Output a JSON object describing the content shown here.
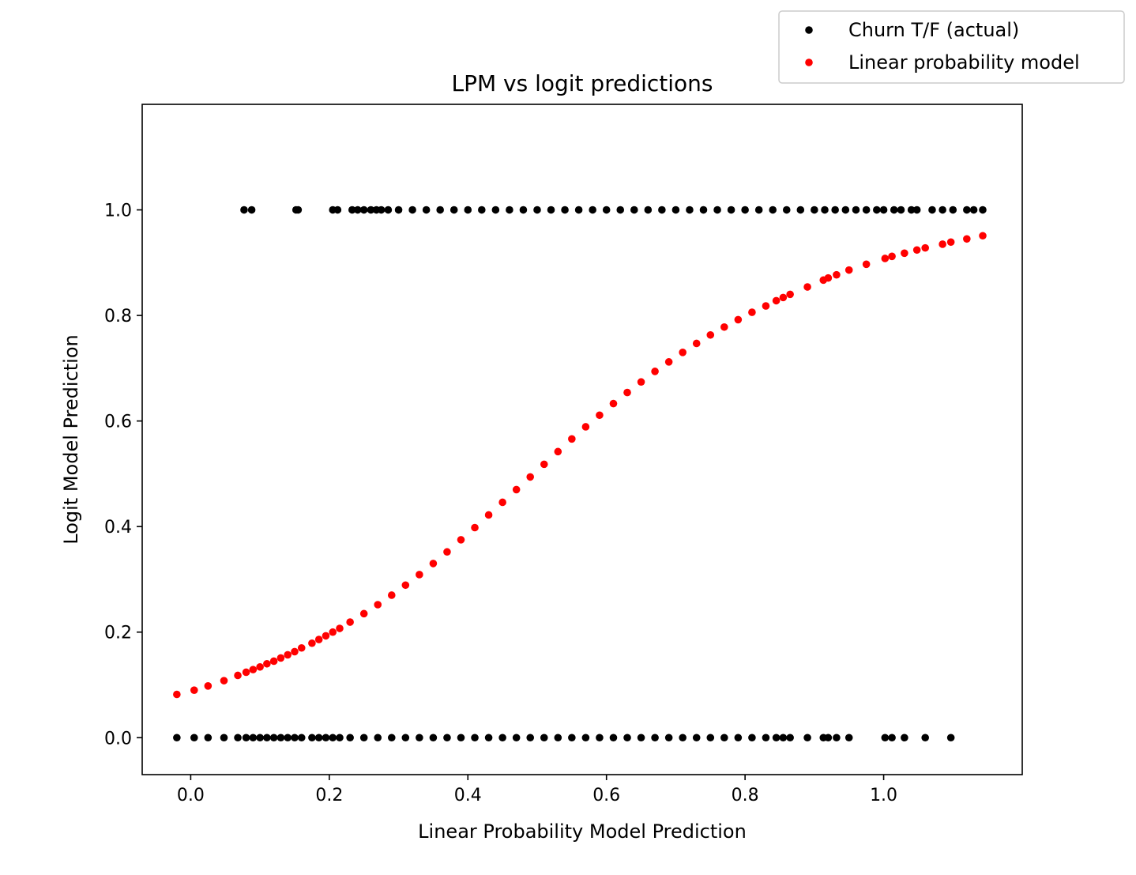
{
  "chart_data": {
    "type": "scatter",
    "title": "LPM vs logit predictions",
    "xlabel": "Linear Probability Model Prediction",
    "ylabel": "Logit Model Prediction",
    "xlim": [
      -0.07,
      1.2
    ],
    "ylim": [
      -0.07,
      1.2
    ],
    "xticks": [
      0.0,
      0.2,
      0.4,
      0.6,
      0.8,
      1.0
    ],
    "xtick_labels": [
      "0.0",
      "0.2",
      "0.4",
      "0.6",
      "0.8",
      "1.0"
    ],
    "yticks": [
      0.0,
      0.2,
      0.4,
      0.6,
      0.8,
      1.0
    ],
    "ytick_labels": [
      "0.0",
      "0.2",
      "0.4",
      "0.6",
      "0.8",
      "1.0"
    ],
    "grid": false,
    "legend_position": "top-right (outside plot)",
    "series": [
      {
        "name": "Churn T/F (actual)",
        "color": "#000000",
        "marker": "dot",
        "points": [
          {
            "x": 0.077,
            "y": 1.0
          },
          {
            "x": 0.088,
            "y": 1.0
          },
          {
            "x": 0.152,
            "y": 1.0
          },
          {
            "x": 0.155,
            "y": 1.0
          },
          {
            "x": 0.205,
            "y": 1.0
          },
          {
            "x": 0.212,
            "y": 1.0
          },
          {
            "x": 0.233,
            "y": 1.0
          },
          {
            "x": 0.241,
            "y": 1.0
          },
          {
            "x": 0.25,
            "y": 1.0
          },
          {
            "x": 0.26,
            "y": 1.0
          },
          {
            "x": 0.268,
            "y": 1.0
          },
          {
            "x": 0.275,
            "y": 1.0
          },
          {
            "x": 0.285,
            "y": 1.0
          },
          {
            "x": 0.3,
            "y": 1.0
          },
          {
            "x": 0.32,
            "y": 1.0
          },
          {
            "x": 0.34,
            "y": 1.0
          },
          {
            "x": 0.36,
            "y": 1.0
          },
          {
            "x": 0.38,
            "y": 1.0
          },
          {
            "x": 0.4,
            "y": 1.0
          },
          {
            "x": 0.42,
            "y": 1.0
          },
          {
            "x": 0.44,
            "y": 1.0
          },
          {
            "x": 0.46,
            "y": 1.0
          },
          {
            "x": 0.48,
            "y": 1.0
          },
          {
            "x": 0.5,
            "y": 1.0
          },
          {
            "x": 0.52,
            "y": 1.0
          },
          {
            "x": 0.54,
            "y": 1.0
          },
          {
            "x": 0.56,
            "y": 1.0
          },
          {
            "x": 0.58,
            "y": 1.0
          },
          {
            "x": 0.6,
            "y": 1.0
          },
          {
            "x": 0.62,
            "y": 1.0
          },
          {
            "x": 0.64,
            "y": 1.0
          },
          {
            "x": 0.66,
            "y": 1.0
          },
          {
            "x": 0.68,
            "y": 1.0
          },
          {
            "x": 0.7,
            "y": 1.0
          },
          {
            "x": 0.72,
            "y": 1.0
          },
          {
            "x": 0.74,
            "y": 1.0
          },
          {
            "x": 0.76,
            "y": 1.0
          },
          {
            "x": 0.78,
            "y": 1.0
          },
          {
            "x": 0.8,
            "y": 1.0
          },
          {
            "x": 0.82,
            "y": 1.0
          },
          {
            "x": 0.84,
            "y": 1.0
          },
          {
            "x": 0.86,
            "y": 1.0
          },
          {
            "x": 0.88,
            "y": 1.0
          },
          {
            "x": 0.9,
            "y": 1.0
          },
          {
            "x": 0.915,
            "y": 1.0
          },
          {
            "x": 0.93,
            "y": 1.0
          },
          {
            "x": 0.945,
            "y": 1.0
          },
          {
            "x": 0.96,
            "y": 1.0
          },
          {
            "x": 0.975,
            "y": 1.0
          },
          {
            "x": 0.99,
            "y": 1.0
          },
          {
            "x": 1.0,
            "y": 1.0
          },
          {
            "x": 1.015,
            "y": 1.0
          },
          {
            "x": 1.025,
            "y": 1.0
          },
          {
            "x": 1.04,
            "y": 1.0
          },
          {
            "x": 1.048,
            "y": 1.0
          },
          {
            "x": 1.07,
            "y": 1.0
          },
          {
            "x": 1.085,
            "y": 1.0
          },
          {
            "x": 1.1,
            "y": 1.0
          },
          {
            "x": 1.12,
            "y": 1.0
          },
          {
            "x": 1.13,
            "y": 1.0
          },
          {
            "x": 1.143,
            "y": 1.0
          },
          {
            "x": -0.02,
            "y": 0.0
          },
          {
            "x": 0.005,
            "y": 0.0
          },
          {
            "x": 0.025,
            "y": 0.0
          },
          {
            "x": 0.048,
            "y": 0.0
          },
          {
            "x": 0.068,
            "y": 0.0
          },
          {
            "x": 0.08,
            "y": 0.0
          },
          {
            "x": 0.09,
            "y": 0.0
          },
          {
            "x": 0.1,
            "y": 0.0
          },
          {
            "x": 0.11,
            "y": 0.0
          },
          {
            "x": 0.12,
            "y": 0.0
          },
          {
            "x": 0.13,
            "y": 0.0
          },
          {
            "x": 0.14,
            "y": 0.0
          },
          {
            "x": 0.15,
            "y": 0.0
          },
          {
            "x": 0.16,
            "y": 0.0
          },
          {
            "x": 0.175,
            "y": 0.0
          },
          {
            "x": 0.185,
            "y": 0.0
          },
          {
            "x": 0.195,
            "y": 0.0
          },
          {
            "x": 0.205,
            "y": 0.0
          },
          {
            "x": 0.215,
            "y": 0.0
          },
          {
            "x": 0.23,
            "y": 0.0
          },
          {
            "x": 0.25,
            "y": 0.0
          },
          {
            "x": 0.27,
            "y": 0.0
          },
          {
            "x": 0.29,
            "y": 0.0
          },
          {
            "x": 0.31,
            "y": 0.0
          },
          {
            "x": 0.33,
            "y": 0.0
          },
          {
            "x": 0.35,
            "y": 0.0
          },
          {
            "x": 0.37,
            "y": 0.0
          },
          {
            "x": 0.39,
            "y": 0.0
          },
          {
            "x": 0.41,
            "y": 0.0
          },
          {
            "x": 0.43,
            "y": 0.0
          },
          {
            "x": 0.45,
            "y": 0.0
          },
          {
            "x": 0.47,
            "y": 0.0
          },
          {
            "x": 0.49,
            "y": 0.0
          },
          {
            "x": 0.51,
            "y": 0.0
          },
          {
            "x": 0.53,
            "y": 0.0
          },
          {
            "x": 0.55,
            "y": 0.0
          },
          {
            "x": 0.57,
            "y": 0.0
          },
          {
            "x": 0.59,
            "y": 0.0
          },
          {
            "x": 0.61,
            "y": 0.0
          },
          {
            "x": 0.63,
            "y": 0.0
          },
          {
            "x": 0.65,
            "y": 0.0
          },
          {
            "x": 0.67,
            "y": 0.0
          },
          {
            "x": 0.69,
            "y": 0.0
          },
          {
            "x": 0.71,
            "y": 0.0
          },
          {
            "x": 0.73,
            "y": 0.0
          },
          {
            "x": 0.75,
            "y": 0.0
          },
          {
            "x": 0.77,
            "y": 0.0
          },
          {
            "x": 0.79,
            "y": 0.0
          },
          {
            "x": 0.81,
            "y": 0.0
          },
          {
            "x": 0.83,
            "y": 0.0
          },
          {
            "x": 0.845,
            "y": 0.0
          },
          {
            "x": 0.855,
            "y": 0.0
          },
          {
            "x": 0.865,
            "y": 0.0
          },
          {
            "x": 0.89,
            "y": 0.0
          },
          {
            "x": 0.913,
            "y": 0.0
          },
          {
            "x": 0.92,
            "y": 0.0
          },
          {
            "x": 0.932,
            "y": 0.0
          },
          {
            "x": 0.95,
            "y": 0.0
          },
          {
            "x": 1.002,
            "y": 0.0
          },
          {
            "x": 1.012,
            "y": 0.0
          },
          {
            "x": 1.03,
            "y": 0.0
          },
          {
            "x": 1.06,
            "y": 0.0
          },
          {
            "x": 1.097,
            "y": 0.0
          }
        ]
      },
      {
        "name": "Linear probability model",
        "color": "#ff0000",
        "marker": "dot",
        "points": [
          {
            "x": -0.02,
            "y": 0.082
          },
          {
            "x": 0.005,
            "y": 0.09
          },
          {
            "x": 0.025,
            "y": 0.098
          },
          {
            "x": 0.048,
            "y": 0.108
          },
          {
            "x": 0.068,
            "y": 0.118
          },
          {
            "x": 0.08,
            "y": 0.124
          },
          {
            "x": 0.09,
            "y": 0.129
          },
          {
            "x": 0.1,
            "y": 0.134
          },
          {
            "x": 0.11,
            "y": 0.14
          },
          {
            "x": 0.12,
            "y": 0.145
          },
          {
            "x": 0.13,
            "y": 0.151
          },
          {
            "x": 0.14,
            "y": 0.157
          },
          {
            "x": 0.15,
            "y": 0.163
          },
          {
            "x": 0.16,
            "y": 0.17
          },
          {
            "x": 0.175,
            "y": 0.179
          },
          {
            "x": 0.185,
            "y": 0.186
          },
          {
            "x": 0.195,
            "y": 0.193
          },
          {
            "x": 0.205,
            "y": 0.2
          },
          {
            "x": 0.215,
            "y": 0.207
          },
          {
            "x": 0.23,
            "y": 0.219
          },
          {
            "x": 0.25,
            "y": 0.235
          },
          {
            "x": 0.27,
            "y": 0.252
          },
          {
            "x": 0.29,
            "y": 0.27
          },
          {
            "x": 0.31,
            "y": 0.289
          },
          {
            "x": 0.33,
            "y": 0.309
          },
          {
            "x": 0.35,
            "y": 0.33
          },
          {
            "x": 0.37,
            "y": 0.352
          },
          {
            "x": 0.39,
            "y": 0.375
          },
          {
            "x": 0.41,
            "y": 0.398
          },
          {
            "x": 0.43,
            "y": 0.422
          },
          {
            "x": 0.45,
            "y": 0.446
          },
          {
            "x": 0.47,
            "y": 0.47
          },
          {
            "x": 0.49,
            "y": 0.494
          },
          {
            "x": 0.51,
            "y": 0.518
          },
          {
            "x": 0.53,
            "y": 0.542
          },
          {
            "x": 0.55,
            "y": 0.566
          },
          {
            "x": 0.57,
            "y": 0.589
          },
          {
            "x": 0.59,
            "y": 0.611
          },
          {
            "x": 0.61,
            "y": 0.633
          },
          {
            "x": 0.63,
            "y": 0.654
          },
          {
            "x": 0.65,
            "y": 0.674
          },
          {
            "x": 0.67,
            "y": 0.694
          },
          {
            "x": 0.69,
            "y": 0.712
          },
          {
            "x": 0.71,
            "y": 0.73
          },
          {
            "x": 0.73,
            "y": 0.747
          },
          {
            "x": 0.75,
            "y": 0.763
          },
          {
            "x": 0.77,
            "y": 0.778
          },
          {
            "x": 0.79,
            "y": 0.792
          },
          {
            "x": 0.81,
            "y": 0.806
          },
          {
            "x": 0.83,
            "y": 0.818
          },
          {
            "x": 0.845,
            "y": 0.828
          },
          {
            "x": 0.855,
            "y": 0.834
          },
          {
            "x": 0.865,
            "y": 0.84
          },
          {
            "x": 0.89,
            "y": 0.854
          },
          {
            "x": 0.913,
            "y": 0.867
          },
          {
            "x": 0.92,
            "y": 0.871
          },
          {
            "x": 0.932,
            "y": 0.877
          },
          {
            "x": 0.95,
            "y": 0.886
          },
          {
            "x": 0.975,
            "y": 0.897
          },
          {
            "x": 1.002,
            "y": 0.908
          },
          {
            "x": 1.012,
            "y": 0.912
          },
          {
            "x": 1.03,
            "y": 0.918
          },
          {
            "x": 1.048,
            "y": 0.924
          },
          {
            "x": 1.06,
            "y": 0.928
          },
          {
            "x": 1.085,
            "y": 0.935
          },
          {
            "x": 1.097,
            "y": 0.939
          },
          {
            "x": 1.12,
            "y": 0.945
          },
          {
            "x": 1.143,
            "y": 0.951
          }
        ]
      }
    ]
  }
}
